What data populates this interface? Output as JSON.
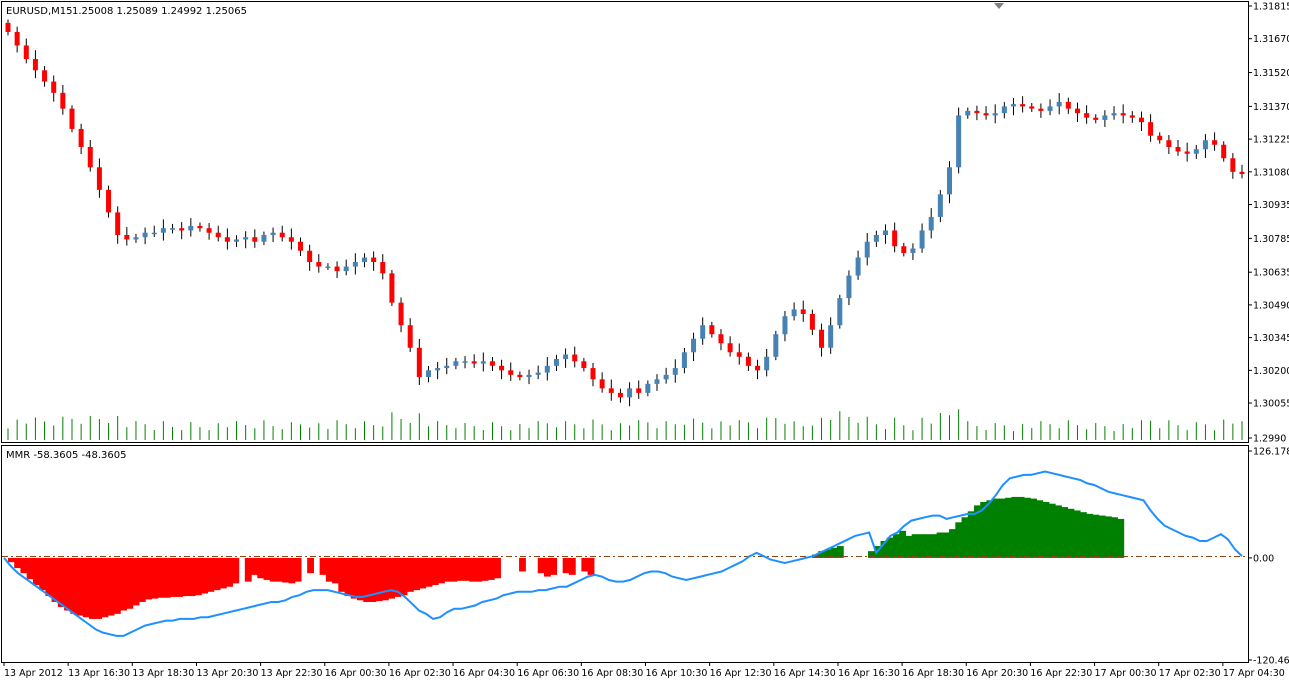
{
  "window": {
    "symbol_title": "EURUSD,M15",
    "ohlc_readout": "1.25008 1.25089 1.24992 1.25065",
    "indicator_title": "MMR -58.3605 -48.3605"
  },
  "colors": {
    "bull": "#4682b4",
    "bear": "#ff0000",
    "volume": "#008000",
    "hist_pos": "#008000",
    "hist_neg": "#ff0000",
    "signal_line": "#1e90ff",
    "zero_line": "#8b4513",
    "frame": "#000000"
  },
  "chart_data": [
    {
      "type": "candlestick",
      "title": "EURUSD,M15",
      "ylim": [
        1.299,
        1.31815
      ],
      "y_ticks": [
        "1.31815",
        "1.31670",
        "1.31520",
        "1.31370",
        "1.31225",
        "1.31080",
        "1.30935",
        "1.30785",
        "1.30635",
        "1.30490",
        "1.30345",
        "1.30200",
        "1.30055",
        "1.2990"
      ],
      "x_ticks": [
        "13 Apr 2012",
        "13 Apr 16:30",
        "13 Apr 18:30",
        "13 Apr 20:30",
        "13 Apr 22:30",
        "16 Apr 00:30",
        "16 Apr 02:30",
        "16 Apr 04:30",
        "16 Apr 06:30",
        "16 Apr 08:30",
        "16 Apr 10:30",
        "16 Apr 12:30",
        "16 Apr 14:30",
        "16 Apr 16:30",
        "16 Apr 18:30",
        "16 Apr 20:30",
        "16 Apr 22:30",
        "17 Apr 00:30",
        "17 Apr 02:30",
        "17 Apr 04:30"
      ],
      "close_path": [
        1.317,
        1.3164,
        1.3158,
        1.3153,
        1.3148,
        1.3143,
        1.3136,
        1.3127,
        1.3119,
        1.311,
        1.31,
        1.309,
        1.308,
        1.3078,
        1.3079,
        1.3081,
        1.3081,
        1.3083,
        1.3083,
        1.3082,
        1.3084,
        1.3083,
        1.3081,
        1.3079,
        1.3077,
        1.3078,
        1.3079,
        1.3077,
        1.308,
        1.3081,
        1.3079,
        1.3077,
        1.3073,
        1.3068,
        1.3066,
        1.3066,
        1.3064,
        1.3066,
        1.3068,
        1.307,
        1.3068,
        1.3063,
        1.305,
        1.304,
        1.303,
        1.3017,
        1.302,
        1.3021,
        1.3022,
        1.3024,
        1.3024,
        1.3023,
        1.3024,
        1.3022,
        1.302,
        1.3018,
        1.3017,
        1.3018,
        1.3019,
        1.3022,
        1.3025,
        1.3027,
        1.3024,
        1.3021,
        1.3016,
        1.3012,
        1.301,
        1.3008,
        1.3012,
        1.301,
        1.3014,
        1.3016,
        1.3018,
        1.3021,
        1.3028,
        1.3034,
        1.304,
        1.3036,
        1.3032,
        1.3028,
        1.3026,
        1.3022,
        1.302,
        1.3026,
        1.3036,
        1.3044,
        1.3047,
        1.3045,
        1.3038,
        1.303,
        1.304,
        1.3052,
        1.3062,
        1.307,
        1.3077,
        1.308,
        1.3082,
        1.3075,
        1.3072,
        1.3074,
        1.3082,
        1.3088,
        1.3098,
        1.311,
        1.3133,
        1.3135,
        1.3134,
        1.3133,
        1.3134,
        1.3137,
        1.3138,
        1.3137,
        1.3136,
        1.3135,
        1.3137,
        1.3139,
        1.3136,
        1.3134,
        1.3132,
        1.3131,
        1.3133,
        1.3134,
        1.3133,
        1.3132,
        1.313,
        1.3124,
        1.3122,
        1.3119,
        1.3117,
        1.3116,
        1.3118,
        1.3122,
        1.312,
        1.3114,
        1.3108,
        1.3107
      ]
    },
    {
      "type": "bar",
      "title": "MMR -58.3605 -48.3605",
      "ylim": [
        -120.464,
        126.1781
      ],
      "y_ticks": [
        "126.1781",
        "0.00",
        "-120.464"
      ],
      "histogram": [
        -5,
        -12,
        -18,
        -25,
        -32,
        -38,
        -45,
        -52,
        -58,
        -62,
        -66,
        -68,
        -70,
        -72,
        -72,
        -70,
        -68,
        -66,
        -62,
        -60,
        -56,
        -52,
        -49,
        -48,
        -47,
        -47,
        -46,
        -46,
        -45,
        -45,
        -44,
        -42,
        -40,
        -38,
        -36,
        -34,
        -30,
        0,
        -28,
        -20,
        -24,
        -26,
        -28,
        -28,
        -29,
        -30,
        -28,
        0,
        -18,
        0,
        -20,
        -28,
        -30,
        -40,
        -45,
        -48,
        -50,
        -52,
        -52,
        -51,
        -50,
        -48,
        -46,
        -44,
        -40,
        -38,
        -36,
        -34,
        -32,
        -30,
        -28,
        -28,
        -27,
        -27,
        -28,
        -28,
        -27,
        -26,
        -24,
        0,
        0,
        0,
        -16,
        0,
        0,
        -18,
        -22,
        -20,
        0,
        -18,
        -20,
        0,
        -16,
        -20,
        0,
        0,
        0,
        0,
        0,
        0,
        0,
        0,
        0,
        0,
        0,
        0,
        0,
        0,
        0,
        0,
        0,
        0,
        0,
        0,
        0,
        0,
        0,
        0,
        0,
        0,
        0,
        0,
        0,
        0,
        0,
        0,
        0,
        0,
        0,
        4,
        8,
        10,
        12,
        14,
        0,
        0,
        0,
        0,
        8,
        14,
        20,
        24,
        28,
        32,
        26,
        28,
        28,
        28,
        28,
        30,
        30,
        34,
        42,
        48,
        55,
        62,
        66,
        68,
        70,
        70,
        71,
        72,
        72,
        71,
        70,
        68,
        66,
        64,
        62,
        60,
        58,
        56,
        54,
        52,
        51,
        50,
        49,
        48,
        46,
        0,
        0,
        0,
        0,
        0,
        0,
        0,
        0,
        0,
        0,
        0,
        0,
        0,
        0,
        0,
        0,
        0,
        0,
        0
      ],
      "signal": [
        0,
        -10,
        -18,
        -24,
        -30,
        -36,
        -42,
        -48,
        -54,
        -60,
        -66,
        -72,
        -78,
        -84,
        -88,
        -90,
        -92,
        -92,
        -88,
        -84,
        -80,
        -78,
        -76,
        -74,
        -74,
        -72,
        -72,
        -72,
        -70,
        -70,
        -68,
        -66,
        -64,
        -62,
        -60,
        -58,
        -56,
        -54,
        -52,
        -52,
        -50,
        -46,
        -44,
        -40,
        -38,
        -38,
        -38,
        -40,
        -42,
        -44,
        -46,
        -46,
        -44,
        -42,
        -40,
        -38,
        -40,
        -46,
        -54,
        -62,
        -66,
        -72,
        -70,
        -64,
        -60,
        -60,
        -58,
        -56,
        -52,
        -50,
        -48,
        -44,
        -42,
        -40,
        -40,
        -40,
        -38,
        -38,
        -36,
        -34,
        -34,
        -30,
        -26,
        -22,
        -20,
        -22,
        -26,
        -28,
        -28,
        -26,
        -22,
        -18,
        -16,
        -16,
        -18,
        -22,
        -24,
        -26,
        -24,
        -22,
        -20,
        -18,
        -16,
        -12,
        -8,
        -4,
        2,
        6,
        2,
        -2,
        -4,
        -6,
        -4,
        -2,
        0,
        2,
        6,
        10,
        14,
        18,
        22,
        26,
        28,
        30,
        6,
        16,
        26,
        30,
        38,
        44,
        46,
        48,
        50,
        50,
        46,
        48,
        50,
        52,
        52,
        56,
        64,
        74,
        86,
        94,
        96,
        98,
        98,
        100,
        102,
        100,
        98,
        96,
        94,
        92,
        88,
        86,
        82,
        78,
        76,
        74,
        72,
        70,
        68,
        56,
        46,
        38,
        34,
        30,
        26,
        24,
        20,
        20,
        24,
        28,
        22,
        10,
        2
      ]
    }
  ]
}
